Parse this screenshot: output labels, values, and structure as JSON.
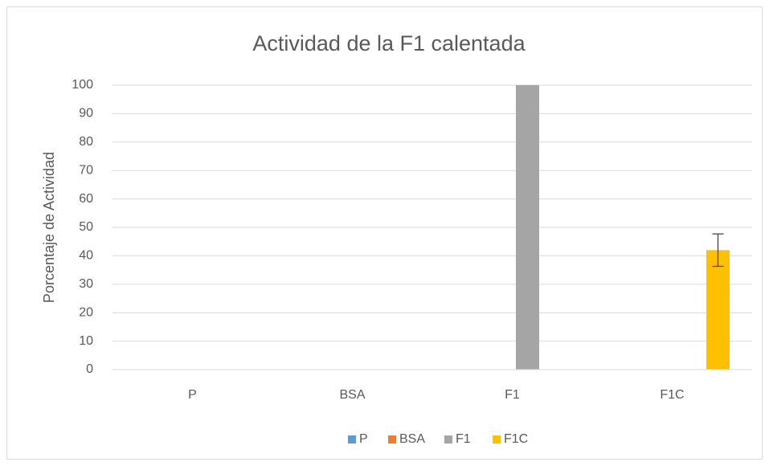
{
  "chart_data": {
    "type": "bar",
    "title": "Actividad de la F1 calentada",
    "y_label": "Porcentaje de Actividad",
    "categories": [
      "P",
      "BSA",
      "F1",
      "F1C"
    ],
    "series": [
      {
        "name": "P",
        "color": "#5b9bd5",
        "values": [
          0,
          null,
          null,
          null
        ]
      },
      {
        "name": "BSA",
        "color": "#ed7d31",
        "values": [
          null,
          0,
          null,
          null
        ]
      },
      {
        "name": "F1",
        "color": "#a5a5a5",
        "values": [
          null,
          null,
          100,
          null
        ]
      },
      {
        "name": "F1C",
        "color": "#ffc000",
        "values": [
          null,
          null,
          null,
          42
        ],
        "errors": [
          null,
          null,
          null,
          5.7
        ]
      }
    ],
    "ylim": [
      0,
      100
    ],
    "yticks": [
      0,
      10,
      20,
      30,
      40,
      50,
      60,
      70,
      80,
      90,
      100
    ],
    "grid": true,
    "legend": "bottom"
  }
}
